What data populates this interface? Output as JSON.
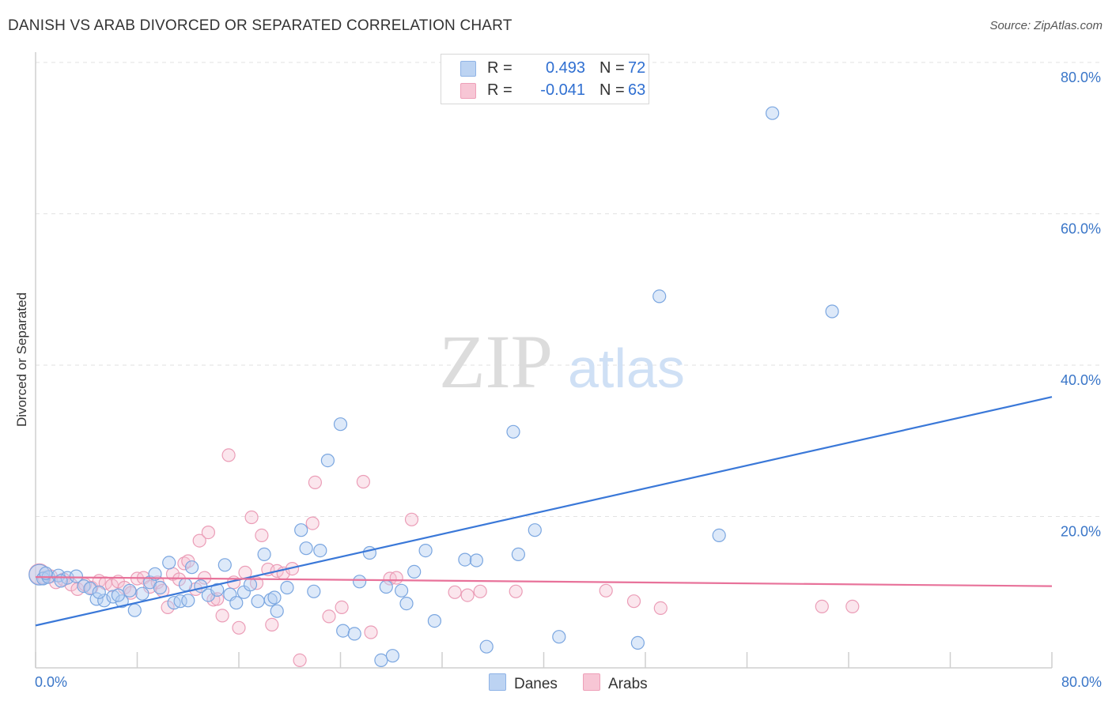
{
  "header": {
    "title": "DANISH VS ARAB DIVORCED OR SEPARATED CORRELATION CHART",
    "source": "Source: ZipAtlas.com"
  },
  "watermark": {
    "zip": "ZIP",
    "atlas": "atlas"
  },
  "legend": {
    "danes": {
      "r_label": "R =",
      "r_value": "0.493",
      "n_label": "N =",
      "n_value": "72",
      "color": "#a9c7ee"
    },
    "arabs": {
      "r_label": "R =",
      "r_value": "-0.041",
      "n_label": "N =",
      "n_value": "63",
      "color": "#f5b8cb"
    }
  },
  "bottom_legend": {
    "danes": "Danes",
    "arabs": "Arabs"
  },
  "chart_data": {
    "type": "scatter",
    "title": "DANISH VS ARAB DIVORCED OR SEPARATED CORRELATION CHART",
    "xlabel": "",
    "ylabel": "Divorced or Separated",
    "xlim": [
      0,
      80
    ],
    "ylim": [
      0,
      80
    ],
    "x_tick_labels": [
      "0.0%",
      "80.0%"
    ],
    "y_tick_labels": [
      "20.0%",
      "40.0%",
      "60.0%",
      "80.0%"
    ],
    "y_ticks": [
      20,
      40,
      60,
      80
    ],
    "grid": true,
    "legend_position": "top-center",
    "colors": {
      "danes": "#3a78d8",
      "arabs": "#e8729a",
      "danes_fill": "#bcd3f2",
      "arabs_fill": "#f7c6d5"
    },
    "series": [
      {
        "name": "Danes",
        "trend": [
          [
            0,
            5.6
          ],
          [
            80,
            35.8
          ]
        ],
        "points": [
          [
            0.3,
            12.3
          ],
          [
            0.6,
            11.8
          ],
          [
            1.0,
            12.0
          ],
          [
            1.8,
            12.2
          ],
          [
            2.5,
            11.9
          ],
          [
            3.2,
            12.1
          ],
          [
            3.8,
            10.8
          ],
          [
            4.3,
            10.5
          ],
          [
            4.8,
            9.1
          ],
          [
            5.4,
            8.9
          ],
          [
            6.1,
            9.4
          ],
          [
            6.8,
            8.8
          ],
          [
            7.4,
            10.2
          ],
          [
            7.8,
            7.6
          ],
          [
            8.4,
            9.8
          ],
          [
            9.0,
            11.3
          ],
          [
            9.4,
            12.4
          ],
          [
            9.8,
            10.6
          ],
          [
            10.5,
            13.9
          ],
          [
            10.9,
            8.6
          ],
          [
            11.4,
            8.8
          ],
          [
            11.8,
            11.0
          ],
          [
            12.3,
            13.3
          ],
          [
            13.0,
            10.8
          ],
          [
            13.6,
            9.6
          ],
          [
            14.3,
            10.3
          ],
          [
            14.9,
            13.6
          ],
          [
            15.3,
            9.7
          ],
          [
            15.8,
            8.6
          ],
          [
            16.4,
            10.0
          ],
          [
            16.9,
            11.0
          ],
          [
            17.5,
            8.8
          ],
          [
            18.0,
            15.0
          ],
          [
            18.5,
            9.0
          ],
          [
            19.0,
            7.5
          ],
          [
            19.8,
            10.6
          ],
          [
            20.9,
            18.2
          ],
          [
            21.3,
            15.8
          ],
          [
            21.9,
            10.1
          ],
          [
            22.4,
            15.5
          ],
          [
            23.0,
            27.4
          ],
          [
            24.0,
            32.2
          ],
          [
            24.2,
            4.9
          ],
          [
            25.1,
            4.5
          ],
          [
            25.5,
            11.4
          ],
          [
            26.3,
            15.2
          ],
          [
            27.2,
            1.0
          ],
          [
            27.6,
            10.7
          ],
          [
            28.1,
            1.6
          ],
          [
            28.8,
            10.2
          ],
          [
            29.2,
            8.5
          ],
          [
            29.8,
            12.7
          ],
          [
            30.7,
            15.5
          ],
          [
            31.4,
            6.2
          ],
          [
            33.8,
            14.3
          ],
          [
            34.7,
            14.2
          ],
          [
            35.5,
            2.8
          ],
          [
            37.6,
            31.2
          ],
          [
            38.0,
            15.0
          ],
          [
            39.3,
            18.2
          ],
          [
            41.2,
            4.1
          ],
          [
            47.4,
            3.3
          ],
          [
            49.1,
            49.1
          ],
          [
            53.8,
            17.5
          ],
          [
            58.0,
            73.3
          ],
          [
            62.7,
            47.1
          ],
          [
            0.8,
            12.5
          ],
          [
            2.0,
            11.5
          ],
          [
            5.0,
            10.0
          ],
          [
            6.5,
            9.6
          ],
          [
            12.0,
            8.9
          ],
          [
            18.8,
            9.3
          ]
        ]
      },
      {
        "name": "Arabs",
        "trend": [
          [
            0,
            12.0
          ],
          [
            80,
            10.8
          ]
        ],
        "points": [
          [
            0.3,
            12.4
          ],
          [
            0.7,
            11.9
          ],
          [
            1.2,
            12.1
          ],
          [
            1.6,
            11.3
          ],
          [
            2.2,
            11.7
          ],
          [
            2.8,
            11.0
          ],
          [
            3.3,
            10.4
          ],
          [
            3.9,
            11.0
          ],
          [
            4.4,
            10.6
          ],
          [
            5.0,
            11.5
          ],
          [
            5.5,
            11.2
          ],
          [
            6.0,
            10.9
          ],
          [
            6.5,
            11.4
          ],
          [
            7.0,
            10.6
          ],
          [
            7.5,
            9.9
          ],
          [
            8.0,
            11.8
          ],
          [
            8.5,
            11.9
          ],
          [
            9.0,
            10.7
          ],
          [
            9.6,
            11.3
          ],
          [
            10.0,
            10.2
          ],
          [
            10.4,
            8.0
          ],
          [
            10.8,
            12.4
          ],
          [
            11.3,
            11.7
          ],
          [
            11.7,
            13.8
          ],
          [
            12.0,
            14.1
          ],
          [
            12.6,
            10.4
          ],
          [
            12.9,
            16.8
          ],
          [
            13.3,
            11.9
          ],
          [
            13.6,
            17.9
          ],
          [
            14.0,
            9.0
          ],
          [
            14.3,
            9.1
          ],
          [
            14.7,
            6.9
          ],
          [
            15.2,
            28.1
          ],
          [
            15.6,
            11.3
          ],
          [
            16.0,
            5.3
          ],
          [
            16.5,
            12.6
          ],
          [
            17.0,
            19.9
          ],
          [
            17.4,
            11.2
          ],
          [
            17.8,
            17.5
          ],
          [
            18.3,
            13.0
          ],
          [
            18.6,
            5.7
          ],
          [
            19.0,
            12.8
          ],
          [
            19.5,
            12.5
          ],
          [
            20.2,
            13.1
          ],
          [
            20.8,
            1.0
          ],
          [
            21.8,
            19.1
          ],
          [
            22.0,
            24.5
          ],
          [
            23.1,
            6.8
          ],
          [
            24.1,
            8.0
          ],
          [
            25.8,
            24.6
          ],
          [
            26.4,
            4.7
          ],
          [
            27.9,
            11.8
          ],
          [
            28.4,
            11.9
          ],
          [
            29.6,
            19.6
          ],
          [
            33.0,
            10.0
          ],
          [
            34.0,
            9.6
          ],
          [
            35.0,
            10.1
          ],
          [
            37.8,
            10.1
          ],
          [
            44.9,
            10.2
          ],
          [
            47.1,
            8.8
          ],
          [
            49.2,
            7.9
          ],
          [
            61.9,
            8.1
          ],
          [
            64.3,
            8.1
          ]
        ]
      }
    ]
  }
}
